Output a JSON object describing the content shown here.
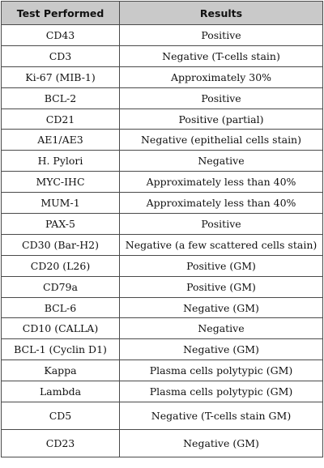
{
  "table": {
    "headers": [
      "Test Performed",
      "Results"
    ],
    "rows": [
      [
        "CD43",
        "Positive"
      ],
      [
        "CD3",
        "Negative (T-cells stain)"
      ],
      [
        "Ki-67 (MIB-1)",
        "Approximately 30%"
      ],
      [
        "BCL-2",
        "Positive"
      ],
      [
        "CD21",
        "Positive (partial)"
      ],
      [
        "AE1/AE3",
        "Negative (epithelial cells stain)"
      ],
      [
        "H. Pylori",
        "Negative"
      ],
      [
        "MYC-IHC",
        "Approximately less than 40%"
      ],
      [
        "MUM-1",
        "Approximately less than 40%"
      ],
      [
        "PAX-5",
        "Positive"
      ],
      [
        "CD30 (Bar-H2)",
        "Negative (a few scattered cells stain)"
      ],
      [
        "CD20 (L26)",
        "Positive (GM)"
      ],
      [
        "CD79a",
        "Positive (GM)"
      ],
      [
        "BCL-6",
        "Negative (GM)"
      ],
      [
        "CD10 (CALLA)",
        "Negative"
      ],
      [
        "BCL-1 (Cyclin D1)",
        "Negative (GM)"
      ],
      [
        "Kappa",
        "Plasma cells polytypic (GM)"
      ],
      [
        "Lambda",
        "Plasma cells polytypic (GM)"
      ],
      [
        "CD5",
        "Negative (T-cells stain GM)"
      ],
      [
        "CD23",
        "Negative (GM)"
      ]
    ]
  }
}
